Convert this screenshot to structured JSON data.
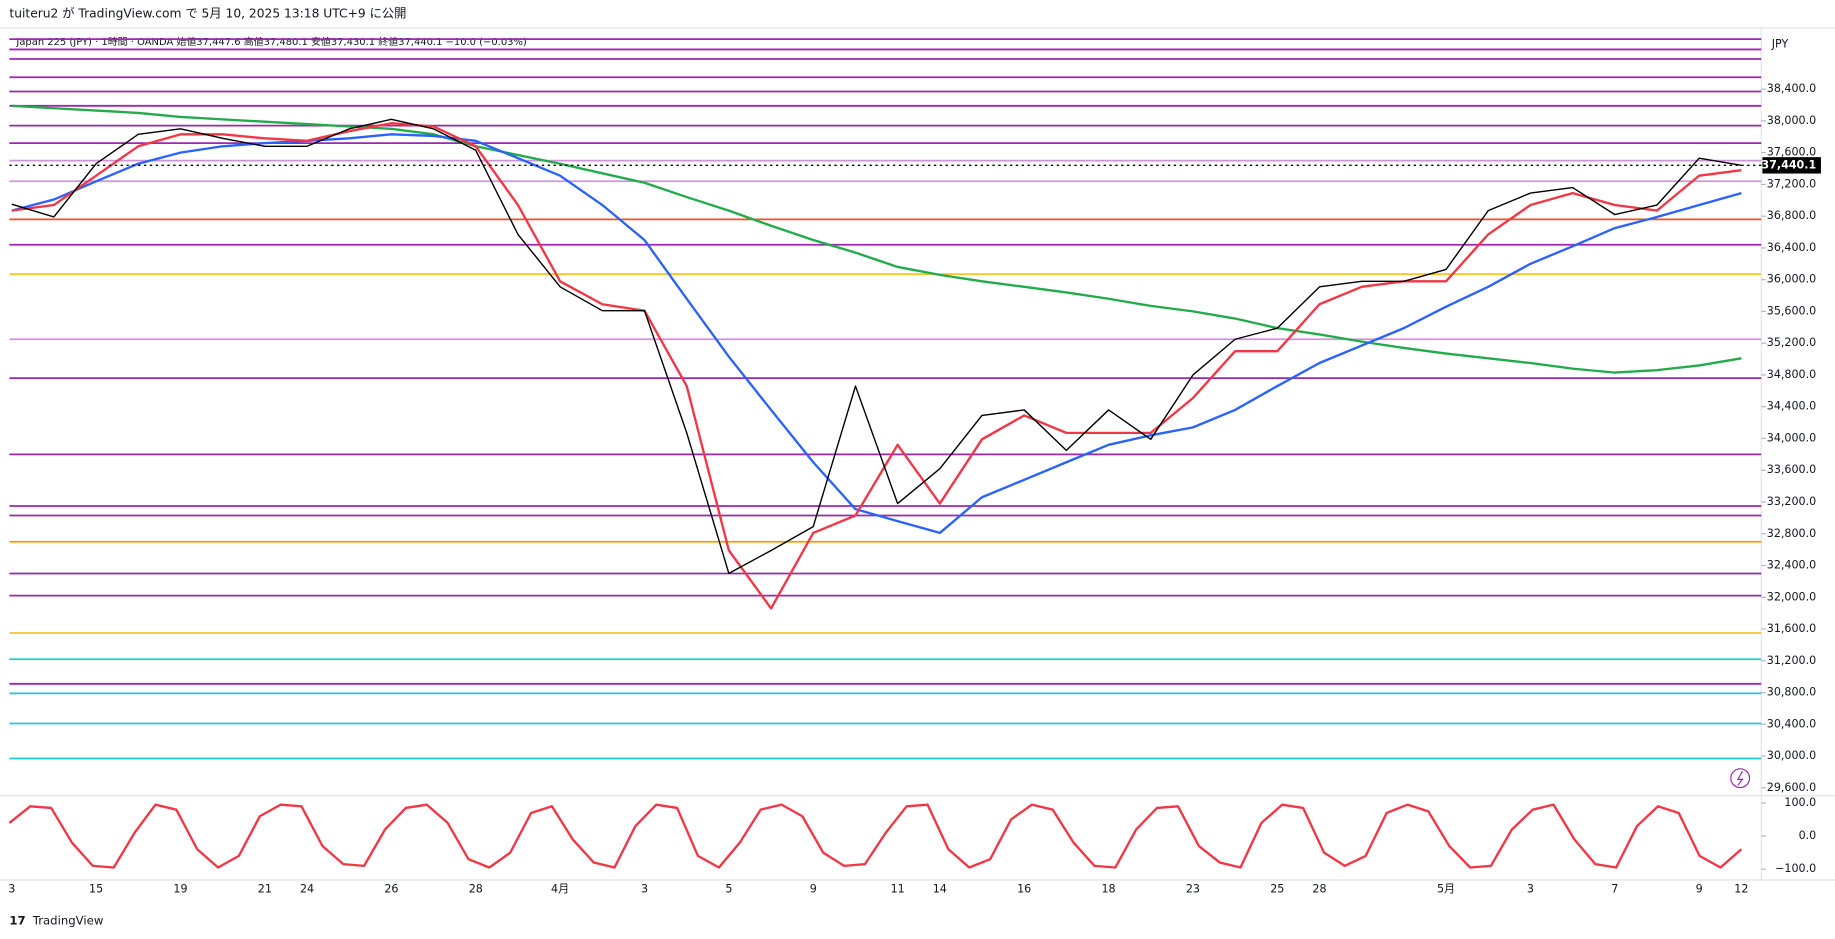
{
  "header": {
    "published": "tuiteru2 が TradingView.com で 5月 10, 2025 13:18 UTC+9 に公開",
    "symbol": "Japan 225 (JPY) · 1時間 · OANDA  始値37,447.6  高値37,480.1  安値37,430.1  終値37,440.1  −10.0 (−0.03%)",
    "currency": "JPY",
    "brand": "TradingView"
  },
  "chart_data": [
    {
      "type": "line",
      "categories": [
        "3",
        null,
        "15",
        null,
        "19",
        null,
        "21",
        "24",
        null,
        "26",
        null,
        "28",
        null,
        "4月",
        null,
        "3",
        null,
        "5",
        null,
        "9",
        null,
        "11",
        "14",
        null,
        "16",
        null,
        "18",
        null,
        "23",
        null,
        "25",
        "28",
        null,
        null,
        "5月",
        null,
        "3",
        null,
        "7",
        null,
        "9",
        "12"
      ],
      "series": [
        {
          "color": "#22ab4a",
          "values": [
            38190,
            38160,
            38130,
            38100,
            38050,
            38020,
            37990,
            37960,
            37930,
            37900,
            37830,
            37680,
            37570,
            37460,
            37340,
            37220,
            37040,
            36870,
            36680,
            36500,
            36340,
            36160,
            36060,
            35980,
            35910,
            35840,
            35760,
            35670,
            35600,
            35510,
            35390,
            35310,
            35220,
            35140,
            35070,
            35010,
            34950,
            34880,
            34830,
            34860,
            34920,
            35010
          ]
        },
        {
          "color": "#2962ff",
          "values": [
            36870,
            37010,
            37240,
            37460,
            37600,
            37680,
            37720,
            37750,
            37780,
            37830,
            37810,
            37750,
            37530,
            37310,
            36940,
            36500,
            35760,
            35030,
            34360,
            33700,
            33110,
            32960,
            32810,
            33260,
            33480,
            33700,
            33920,
            34040,
            34140,
            34360,
            34660,
            34950,
            35170,
            35390,
            35660,
            35910,
            36200,
            36420,
            36650,
            36790,
            36940,
            37090
          ]
        },
        {
          "color": "#f23645",
          "values": [
            36870,
            36940,
            37310,
            37680,
            37830,
            37830,
            37780,
            37750,
            37870,
            37970,
            37930,
            37680,
            36940,
            35980,
            35690,
            35610,
            34660,
            32590,
            31860,
            32810,
            33030,
            33920,
            33180,
            33990,
            34290,
            34070,
            34070,
            34070,
            34510,
            35100,
            35100,
            35690,
            35910,
            35980,
            35980,
            36570,
            36940,
            37090,
            36940,
            36870,
            37310,
            37380
          ]
        },
        {
          "color": "#000000",
          "values": [
            36950,
            36790,
            37460,
            37830,
            37900,
            37780,
            37680,
            37680,
            37900,
            38020,
            37900,
            37630,
            36570,
            35910,
            35610,
            35610,
            34070,
            32300,
            32590,
            32890,
            34660,
            33180,
            33620,
            34290,
            34360,
            33850,
            34360,
            33990,
            34800,
            35250,
            35390,
            35910,
            35980,
            35980,
            36130,
            36870,
            37090,
            37160,
            36820,
            36940,
            37530,
            37440
          ]
        }
      ],
      "levels": [
        {
          "value": 39030,
          "color": "#9c27b0"
        },
        {
          "value": 38900,
          "color": "#9c27b0"
        },
        {
          "value": 38780,
          "color": "#9c27b0"
        },
        {
          "value": 38550,
          "color": "#9c27b0"
        },
        {
          "value": 38370,
          "color": "#9c27b0"
        },
        {
          "value": 38190,
          "color": "#9c27b0"
        },
        {
          "value": 37940,
          "color": "#9c27b0"
        },
        {
          "value": 37720,
          "color": "#9c27b0"
        },
        {
          "value": 37500,
          "color": "#ce93d8"
        },
        {
          "value": 37240,
          "color": "#ce93d8"
        },
        {
          "value": 36760,
          "color": "#f4511e"
        },
        {
          "value": 36440,
          "color": "#9c27b0"
        },
        {
          "value": 36070,
          "color": "#fbc02d"
        },
        {
          "value": 35250,
          "color": "#ce93d8"
        },
        {
          "value": 34760,
          "color": "#9c27b0"
        },
        {
          "value": 33800,
          "color": "#9c27b0"
        },
        {
          "value": 33150,
          "color": "#9c27b0"
        },
        {
          "value": 33030,
          "color": "#9c27b0"
        },
        {
          "value": 32700,
          "color": "#ff9800"
        },
        {
          "value": 32300,
          "color": "#9c27b0"
        },
        {
          "value": 32020,
          "color": "#9c27b0"
        },
        {
          "value": 31550,
          "color": "#fbc02d"
        },
        {
          "value": 31220,
          "color": "#26c6da"
        },
        {
          "value": 30910,
          "color": "#9c27b0"
        },
        {
          "value": 30790,
          "color": "#26c6da"
        },
        {
          "value": 30410,
          "color": "#26c6da"
        },
        {
          "value": 29970,
          "color": "#26c6da"
        }
      ],
      "last_price": {
        "value": 37440.1,
        "label": "37,440.1"
      },
      "ylim": [
        29500,
        39110
      ],
      "yticks": [
        {
          "value": 29600,
          "label": "29,600.0"
        },
        {
          "value": 30000,
          "label": "30,000.0"
        },
        {
          "value": 30400,
          "label": "30,400.0"
        },
        {
          "value": 30800,
          "label": "30,800.0"
        },
        {
          "value": 31200,
          "label": "31,200.0"
        },
        {
          "value": 31600,
          "label": "31,600.0"
        },
        {
          "value": 32000,
          "label": "32,000.0"
        },
        {
          "value": 32400,
          "label": "32,400.0"
        },
        {
          "value": 32800,
          "label": "32,800.0"
        },
        {
          "value": 33200,
          "label": "33,200.0"
        },
        {
          "value": 33600,
          "label": "33,600.0"
        },
        {
          "value": 34000,
          "label": "34,000.0"
        },
        {
          "value": 34400,
          "label": "34,400.0"
        },
        {
          "value": 34800,
          "label": "34,800.0"
        },
        {
          "value": 35200,
          "label": "35,200.0"
        },
        {
          "value": 35600,
          "label": "35,600.0"
        },
        {
          "value": 36000,
          "label": "36,000.0"
        },
        {
          "value": 36400,
          "label": "36,400.0"
        },
        {
          "value": 36800,
          "label": "36,800.0"
        },
        {
          "value": 37200,
          "label": "37,200.0"
        },
        {
          "value": 37600,
          "label": "37,600.0"
        },
        {
          "value": 38000,
          "label": "38,000.0"
        },
        {
          "value": 38400,
          "label": "38,400.0"
        }
      ]
    },
    {
      "type": "line",
      "color": "#f23645",
      "values": [
        40,
        90,
        85,
        -20,
        -90,
        -95,
        10,
        95,
        80,
        -40,
        -95,
        -60,
        60,
        95,
        90,
        -30,
        -85,
        -90,
        20,
        85,
        95,
        40,
        -70,
        -95,
        -50,
        70,
        90,
        -10,
        -80,
        -95,
        30,
        95,
        85,
        -60,
        -95,
        -20,
        80,
        95,
        60,
        -50,
        -90,
        -85,
        10,
        90,
        95,
        -40,
        -95,
        -70,
        50,
        95,
        80,
        -20,
        -90,
        -95,
        20,
        85,
        90,
        -30,
        -80,
        -95,
        40,
        95,
        85,
        -50,
        -90,
        -60,
        70,
        95,
        75,
        -30,
        -95,
        -90,
        20,
        80,
        95,
        -10,
        -85,
        -95,
        30,
        90,
        70,
        -60,
        -95,
        -40
      ],
      "ylim": [
        -133,
        122
      ],
      "yticks": [
        {
          "value": 100,
          "label": "100.0"
        },
        {
          "value": 0,
          "label": "0.0"
        },
        {
          "value": -100,
          "label": "−100.0"
        }
      ]
    }
  ]
}
